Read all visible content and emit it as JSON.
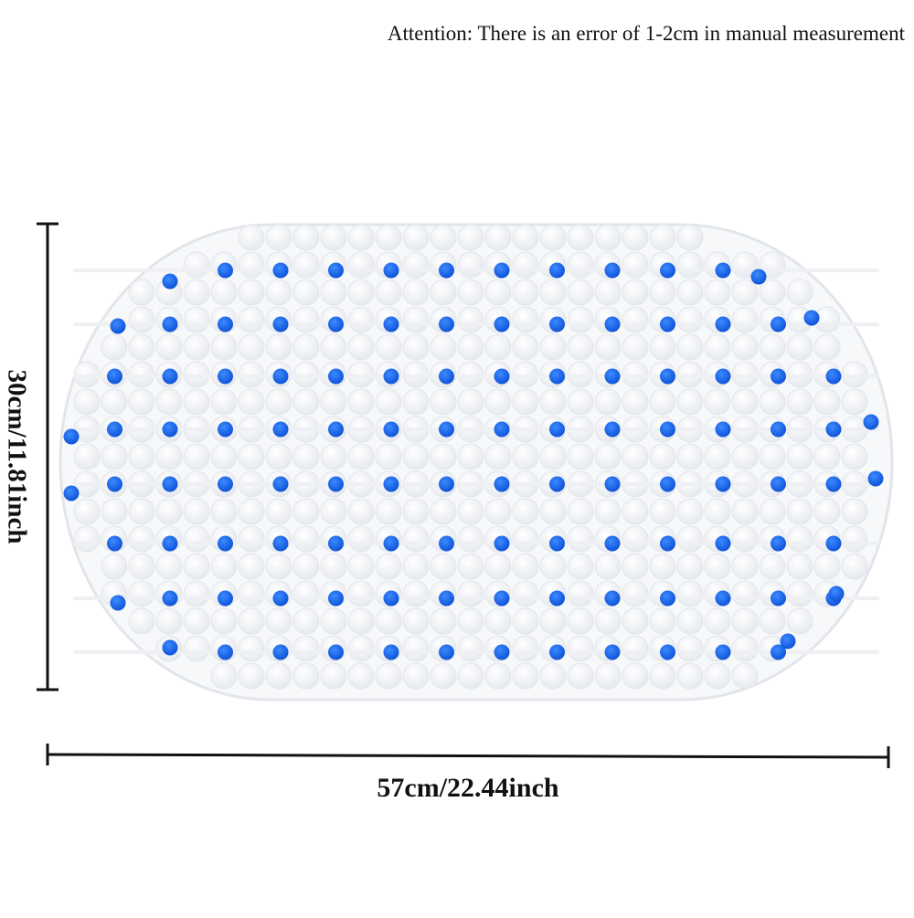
{
  "note": "Attention: There is an error of 1-2cm in manual measurement",
  "dimensions": {
    "height_label": "30cm/11.81inch",
    "width_label": "57cm/22.44inch"
  }
}
